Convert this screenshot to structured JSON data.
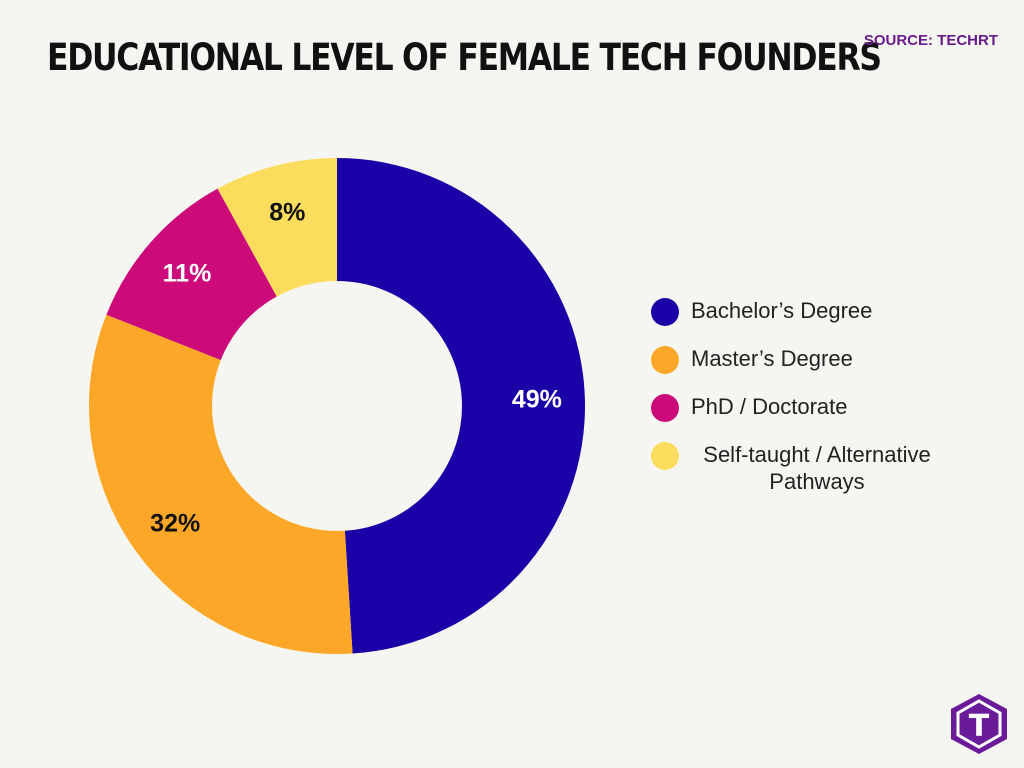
{
  "header": {
    "title": "EDUCATIONAL LEVEL OF FEMALE TECH FOUNDERS",
    "source": "SOURCE: TECHRT"
  },
  "chart_data": {
    "type": "pie",
    "title": "EDUCATIONAL LEVEL OF FEMALE TECH FOUNDERS",
    "donut": true,
    "categories": [
      "Bachelor’s Degree",
      "Master’s Degree",
      "PhD / Doctorate",
      "Self-taught / Alternative Pathways"
    ],
    "values": [
      49,
      32,
      11,
      8
    ],
    "labels": [
      "49%",
      "32%",
      "11%",
      "8%"
    ],
    "colors": [
      "#1b00a8",
      "#fca728",
      "#cc0a7a",
      "#fcdc5c"
    ],
    "label_colors": [
      "#ffffff",
      "#111111",
      "#ffffff",
      "#111111"
    ],
    "legend_position": "right"
  },
  "legend": {
    "items": [
      {
        "label": "Bachelor’s Degree",
        "color": "#1b00a8"
      },
      {
        "label": "Master’s Degree",
        "color": "#fca728"
      },
      {
        "label": "PhD / Doctorate",
        "color": "#cc0a7a"
      },
      {
        "label": "Self-taught / Alternative Pathways",
        "color": "#fcdc5c"
      }
    ]
  },
  "logo": {
    "letter": "T",
    "icon": "techrt-logo-icon",
    "color": "#6a1b9a"
  }
}
